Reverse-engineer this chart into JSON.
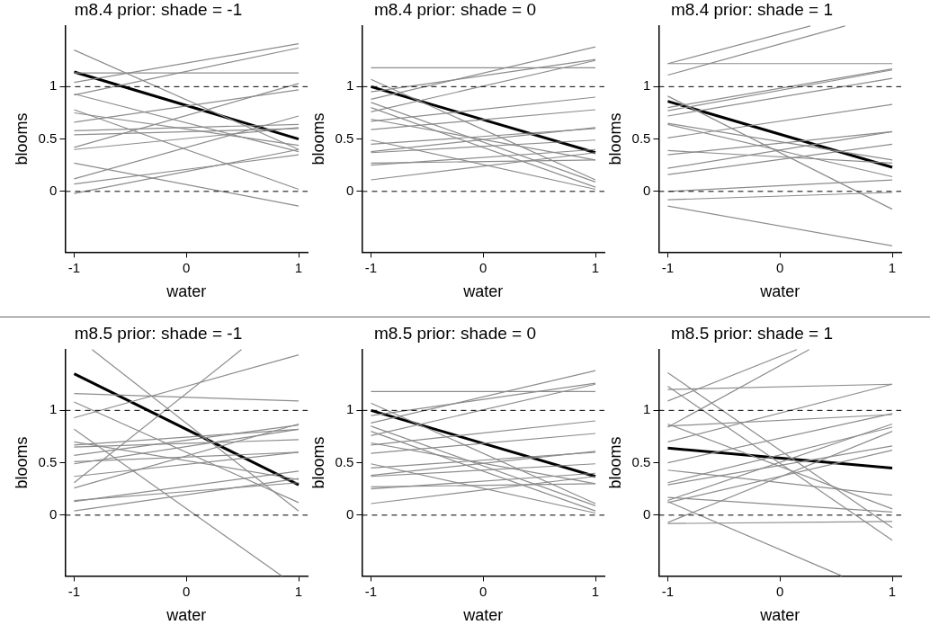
{
  "chart_data": [
    {
      "type": "line",
      "title": "m8.4 prior: shade = -1",
      "xlabel": "water",
      "ylabel": "blooms",
      "xlim": [
        -1.08,
        1.08
      ],
      "xticks": [
        -1,
        0,
        1
      ],
      "ylim": [
        -0.58,
        1.58
      ],
      "yticks": [
        0,
        0.5,
        1
      ],
      "grid": false,
      "marker": "none",
      "line_style": "solid",
      "ref_lines": [
        {
          "axis": "y",
          "value": 0,
          "color": "#000000",
          "line_style": "dashed"
        },
        {
          "axis": "y",
          "value": 1,
          "color": "#000000",
          "line_style": "dashed"
        }
      ],
      "series": [
        {
          "color": "#8c8c8c",
          "x": [
            -1,
            1
          ],
          "values": [
            1.35,
            0.4
          ]
        },
        {
          "color": "#8c8c8c",
          "x": [
            -1,
            1
          ],
          "values": [
            1.04,
            1.41
          ]
        },
        {
          "color": "#8c8c8c",
          "x": [
            -1,
            1
          ],
          "values": [
            0.92,
            1.37
          ]
        },
        {
          "color": "#8c8c8c",
          "x": [
            -1,
            1
          ],
          "values": [
            1.13,
            1.13
          ]
        },
        {
          "color": "#8c8c8c",
          "x": [
            -1,
            1
          ],
          "values": [
            0.93,
            0.38
          ]
        },
        {
          "color": "#8c8c8c",
          "x": [
            -1,
            1
          ],
          "values": [
            0.78,
            0.02
          ]
        },
        {
          "color": "#8c8c8c",
          "x": [
            -1,
            1
          ],
          "values": [
            0.75,
            0.44
          ]
        },
        {
          "color": "#8c8c8c",
          "x": [
            -1,
            1
          ],
          "values": [
            0.66,
            0.97
          ]
        },
        {
          "color": "#8c8c8c",
          "x": [
            -1,
            1
          ],
          "values": [
            0.58,
            0.64
          ]
        },
        {
          "color": "#8c8c8c",
          "x": [
            -1,
            1
          ],
          "values": [
            0.54,
            0.6
          ]
        },
        {
          "color": "#8c8c8c",
          "x": [
            -1,
            1
          ],
          "values": [
            0.42,
            1.03
          ]
        },
        {
          "color": "#8c8c8c",
          "x": [
            -1,
            1
          ],
          "values": [
            0.4,
            0.61
          ]
        },
        {
          "color": "#8c8c8c",
          "x": [
            -1,
            1
          ],
          "values": [
            0.27,
            -0.14
          ]
        },
        {
          "color": "#8c8c8c",
          "x": [
            -1,
            1
          ],
          "values": [
            0.12,
            0.72
          ]
        },
        {
          "color": "#8c8c8c",
          "x": [
            -1,
            1
          ],
          "values": [
            0.07,
            0.35
          ]
        },
        {
          "color": "#8c8c8c",
          "x": [
            -1,
            1
          ],
          "values": [
            -0.02,
            0.4
          ]
        },
        {
          "color": "#000000",
          "x": [
            -1,
            1
          ],
          "values": [
            1.14,
            0.5
          ]
        }
      ]
    },
    {
      "type": "line",
      "title": "m8.4 prior: shade = 0",
      "xlabel": "water",
      "ylabel": "blooms",
      "xlim": [
        -1.08,
        1.08
      ],
      "xticks": [
        -1,
        0,
        1
      ],
      "ylim": [
        -0.58,
        1.58
      ],
      "yticks": [
        0,
        0.5,
        1
      ],
      "grid": false,
      "marker": "none",
      "line_style": "solid",
      "ref_lines": [
        {
          "axis": "y",
          "value": 0,
          "color": "#000000",
          "line_style": "dashed"
        },
        {
          "axis": "y",
          "value": 1,
          "color": "#000000",
          "line_style": "dashed"
        }
      ],
      "series": [
        {
          "color": "#8c8c8c",
          "x": [
            -1,
            1
          ],
          "values": [
            1.18,
            1.18
          ]
        },
        {
          "color": "#8c8c8c",
          "x": [
            -1,
            1
          ],
          "values": [
            1.07,
            0.11
          ]
        },
        {
          "color": "#8c8c8c",
          "x": [
            -1,
            1
          ],
          "values": [
            0.95,
            1.26
          ]
        },
        {
          "color": "#8c8c8c",
          "x": [
            -1,
            1
          ],
          "values": [
            0.88,
            1.38
          ]
        },
        {
          "color": "#8c8c8c",
          "x": [
            -1,
            1
          ],
          "values": [
            0.85,
            0.09
          ]
        },
        {
          "color": "#8c8c8c",
          "x": [
            -1,
            1
          ],
          "values": [
            0.8,
            0.04
          ]
        },
        {
          "color": "#8c8c8c",
          "x": [
            -1,
            1
          ],
          "values": [
            0.76,
            1.25
          ]
        },
        {
          "color": "#8c8c8c",
          "x": [
            -1,
            1
          ],
          "values": [
            0.69,
            0.3
          ]
        },
        {
          "color": "#8c8c8c",
          "x": [
            -1,
            1
          ],
          "values": [
            0.67,
            0.9
          ]
        },
        {
          "color": "#8c8c8c",
          "x": [
            -1,
            1
          ],
          "values": [
            0.59,
            0.78
          ]
        },
        {
          "color": "#8c8c8c",
          "x": [
            -1,
            1
          ],
          "values": [
            0.49,
            0.02
          ]
        },
        {
          "color": "#8c8c8c",
          "x": [
            -1,
            1
          ],
          "values": [
            0.45,
            0.6
          ]
        },
        {
          "color": "#8c8c8c",
          "x": [
            -1,
            1
          ],
          "values": [
            0.38,
            0.61
          ]
        },
        {
          "color": "#8c8c8c",
          "x": [
            -1,
            1
          ],
          "values": [
            0.37,
            0.49
          ]
        },
        {
          "color": "#8c8c8c",
          "x": [
            -1,
            1
          ],
          "values": [
            0.27,
            0.3
          ]
        },
        {
          "color": "#8c8c8c",
          "x": [
            -1,
            1
          ],
          "values": [
            0.25,
            0.4
          ]
        },
        {
          "color": "#8c8c8c",
          "x": [
            -1,
            1
          ],
          "values": [
            0.11,
            0.37
          ]
        },
        {
          "color": "#000000",
          "x": [
            -1,
            1
          ],
          "values": [
            1.0,
            0.37
          ]
        }
      ]
    },
    {
      "type": "line",
      "title": "m8.4 prior: shade = 1",
      "xlabel": "water",
      "ylabel": "blooms",
      "xlim": [
        -1.08,
        1.08
      ],
      "xticks": [
        -1,
        0,
        1
      ],
      "ylim": [
        -0.58,
        1.58
      ],
      "yticks": [
        0,
        0.5,
        1
      ],
      "grid": false,
      "marker": "none",
      "line_style": "solid",
      "ref_lines": [
        {
          "axis": "y",
          "value": 0,
          "color": "#000000",
          "line_style": "dashed"
        },
        {
          "axis": "y",
          "value": 1,
          "color": "#000000",
          "line_style": "dashed"
        }
      ],
      "series": [
        {
          "color": "#8c8c8c",
          "x": [
            -1,
            1
          ],
          "values": [
            1.22,
            1.22
          ]
        },
        {
          "color": "#8c8c8c",
          "x": [
            -1,
            0.27
          ],
          "values": [
            1.22,
            1.58
          ]
        },
        {
          "color": "#8c8c8c",
          "x": [
            -1,
            0.58
          ],
          "values": [
            1.11,
            1.58
          ]
        },
        {
          "color": "#8c8c8c",
          "x": [
            -1,
            1
          ],
          "values": [
            0.91,
            -0.17
          ]
        },
        {
          "color": "#8c8c8c",
          "x": [
            -1,
            1
          ],
          "values": [
            0.8,
            1.17
          ]
        },
        {
          "color": "#8c8c8c",
          "x": [
            -1,
            1
          ],
          "values": [
            0.77,
            1.16
          ]
        },
        {
          "color": "#8c8c8c",
          "x": [
            -1,
            1
          ],
          "values": [
            0.72,
            1.08
          ]
        },
        {
          "color": "#8c8c8c",
          "x": [
            -1,
            1
          ],
          "values": [
            0.65,
            0.3
          ]
        },
        {
          "color": "#8c8c8c",
          "x": [
            -1,
            1
          ],
          "values": [
            0.64,
            0.14
          ]
        },
        {
          "color": "#8c8c8c",
          "x": [
            -1,
            1
          ],
          "values": [
            0.51,
            0.83
          ]
        },
        {
          "color": "#8c8c8c",
          "x": [
            -1,
            1
          ],
          "values": [
            0.39,
            0.27
          ]
        },
        {
          "color": "#8c8c8c",
          "x": [
            -1,
            1
          ],
          "values": [
            0.35,
            0.57
          ]
        },
        {
          "color": "#8c8c8c",
          "x": [
            -1,
            1
          ],
          "values": [
            0.22,
            0.57
          ]
        },
        {
          "color": "#8c8c8c",
          "x": [
            -1,
            1
          ],
          "values": [
            0.16,
            0.45
          ]
        },
        {
          "color": "#8c8c8c",
          "x": [
            -1,
            1
          ],
          "values": [
            0.0,
            0.11
          ]
        },
        {
          "color": "#8c8c8c",
          "x": [
            -1,
            1
          ],
          "values": [
            -0.08,
            -0.01
          ]
        },
        {
          "color": "#8c8c8c",
          "x": [
            -1,
            1
          ],
          "values": [
            -0.14,
            -0.52
          ]
        },
        {
          "color": "#000000",
          "x": [
            -1,
            1
          ],
          "values": [
            0.86,
            0.23
          ]
        }
      ]
    },
    {
      "type": "line",
      "title": "m8.5 prior: shade = -1",
      "xlabel": "water",
      "ylabel": "blooms",
      "xlim": [
        -1.08,
        1.08
      ],
      "xticks": [
        -1,
        0,
        1
      ],
      "ylim": [
        -0.58,
        1.58
      ],
      "yticks": [
        0,
        0.5,
        1
      ],
      "grid": false,
      "marker": "none",
      "line_style": "solid",
      "ref_lines": [
        {
          "axis": "y",
          "value": 0,
          "color": "#000000",
          "line_style": "dashed"
        },
        {
          "axis": "y",
          "value": 1,
          "color": "#000000",
          "line_style": "dashed"
        }
      ],
      "series": [
        {
          "color": "#8c8c8c",
          "x": [
            -0.84,
            1
          ],
          "values": [
            1.58,
            0.04
          ]
        },
        {
          "color": "#8c8c8c",
          "x": [
            -1,
            1
          ],
          "values": [
            1.16,
            1.09
          ]
        },
        {
          "color": "#8c8c8c",
          "x": [
            -1,
            1
          ],
          "values": [
            1.08,
            0.12
          ]
        },
        {
          "color": "#8c8c8c",
          "x": [
            -1,
            1
          ],
          "values": [
            0.93,
            1.53
          ]
        },
        {
          "color": "#8c8c8c",
          "x": [
            -1,
            0.85
          ],
          "values": [
            0.82,
            -0.58
          ]
        },
        {
          "color": "#8c8c8c",
          "x": [
            -1,
            1
          ],
          "values": [
            0.7,
            0.34
          ]
        },
        {
          "color": "#8c8c8c",
          "x": [
            -1,
            1
          ],
          "values": [
            0.67,
            0.82
          ]
        },
        {
          "color": "#8c8c8c",
          "x": [
            -1,
            1
          ],
          "values": [
            0.65,
            0.72
          ]
        },
        {
          "color": "#8c8c8c",
          "x": [
            -1,
            1
          ],
          "values": [
            0.57,
            0.86
          ]
        },
        {
          "color": "#8c8c8c",
          "x": [
            -1,
            1
          ],
          "values": [
            0.51,
            0.6
          ]
        },
        {
          "color": "#8c8c8c",
          "x": [
            -1,
            1
          ],
          "values": [
            0.49,
            0.82
          ]
        },
        {
          "color": "#8c8c8c",
          "x": [
            -1,
            1
          ],
          "values": [
            0.37,
            0.6
          ]
        },
        {
          "color": "#8c8c8c",
          "x": [
            -1,
            0.49
          ],
          "values": [
            0.31,
            1.58
          ]
        },
        {
          "color": "#8c8c8c",
          "x": [
            -1,
            1
          ],
          "values": [
            0.26,
            0.87
          ]
        },
        {
          "color": "#8c8c8c",
          "x": [
            -1,
            1
          ],
          "values": [
            0.14,
            0.31
          ]
        },
        {
          "color": "#8c8c8c",
          "x": [
            -1,
            1
          ],
          "values": [
            0.13,
            0.42
          ]
        },
        {
          "color": "#8c8c8c",
          "x": [
            -1,
            1
          ],
          "values": [
            0.04,
            0.35
          ]
        },
        {
          "color": "#000000",
          "x": [
            -1,
            1
          ],
          "values": [
            1.35,
            0.29
          ]
        }
      ]
    },
    {
      "type": "line",
      "title": "m8.5 prior: shade = 0",
      "xlabel": "water",
      "ylabel": "blooms",
      "xlim": [
        -1.08,
        1.08
      ],
      "xticks": [
        -1,
        0,
        1
      ],
      "ylim": [
        -0.58,
        1.58
      ],
      "yticks": [
        0,
        0.5,
        1
      ],
      "grid": false,
      "marker": "none",
      "line_style": "solid",
      "ref_lines": [
        {
          "axis": "y",
          "value": 0,
          "color": "#000000",
          "line_style": "dashed"
        },
        {
          "axis": "y",
          "value": 1,
          "color": "#000000",
          "line_style": "dashed"
        }
      ],
      "series": [
        {
          "color": "#8c8c8c",
          "x": [
            -1,
            1
          ],
          "values": [
            1.18,
            1.18
          ]
        },
        {
          "color": "#8c8c8c",
          "x": [
            -1,
            1
          ],
          "values": [
            1.07,
            0.11
          ]
        },
        {
          "color": "#8c8c8c",
          "x": [
            -1,
            1
          ],
          "values": [
            0.95,
            1.26
          ]
        },
        {
          "color": "#8c8c8c",
          "x": [
            -1,
            1
          ],
          "values": [
            0.88,
            1.38
          ]
        },
        {
          "color": "#8c8c8c",
          "x": [
            -1,
            1
          ],
          "values": [
            0.85,
            0.09
          ]
        },
        {
          "color": "#8c8c8c",
          "x": [
            -1,
            1
          ],
          "values": [
            0.8,
            0.04
          ]
        },
        {
          "color": "#8c8c8c",
          "x": [
            -1,
            1
          ],
          "values": [
            0.76,
            1.25
          ]
        },
        {
          "color": "#8c8c8c",
          "x": [
            -1,
            1
          ],
          "values": [
            0.69,
            0.3
          ]
        },
        {
          "color": "#8c8c8c",
          "x": [
            -1,
            1
          ],
          "values": [
            0.67,
            0.9
          ]
        },
        {
          "color": "#8c8c8c",
          "x": [
            -1,
            1
          ],
          "values": [
            0.59,
            0.78
          ]
        },
        {
          "color": "#8c8c8c",
          "x": [
            -1,
            1
          ],
          "values": [
            0.49,
            0.02
          ]
        },
        {
          "color": "#8c8c8c",
          "x": [
            -1,
            1
          ],
          "values": [
            0.45,
            0.6
          ]
        },
        {
          "color": "#8c8c8c",
          "x": [
            -1,
            1
          ],
          "values": [
            0.38,
            0.61
          ]
        },
        {
          "color": "#8c8c8c",
          "x": [
            -1,
            1
          ],
          "values": [
            0.37,
            0.49
          ]
        },
        {
          "color": "#8c8c8c",
          "x": [
            -1,
            1
          ],
          "values": [
            0.27,
            0.3
          ]
        },
        {
          "color": "#8c8c8c",
          "x": [
            -1,
            1
          ],
          "values": [
            0.25,
            0.4
          ]
        },
        {
          "color": "#8c8c8c",
          "x": [
            -1,
            1
          ],
          "values": [
            0.11,
            0.37
          ]
        },
        {
          "color": "#000000",
          "x": [
            -1,
            1
          ],
          "values": [
            1.0,
            0.37
          ]
        }
      ]
    },
    {
      "type": "line",
      "title": "m8.5 prior: shade = 1",
      "xlabel": "water",
      "ylabel": "blooms",
      "xlim": [
        -1.08,
        1.08
      ],
      "xticks": [
        -1,
        0,
        1
      ],
      "ylim": [
        -0.58,
        1.58
      ],
      "yticks": [
        0,
        0.5,
        1
      ],
      "grid": false,
      "marker": "none",
      "line_style": "solid",
      "ref_lines": [
        {
          "axis": "y",
          "value": 0,
          "color": "#000000",
          "line_style": "dashed"
        },
        {
          "axis": "y",
          "value": 1,
          "color": "#000000",
          "line_style": "dashed"
        }
      ],
      "series": [
        {
          "color": "#8c8c8c",
          "x": [
            -1,
            1
          ],
          "values": [
            1.36,
            -0.12
          ]
        },
        {
          "color": "#8c8c8c",
          "x": [
            -1,
            1
          ],
          "values": [
            1.23,
            -0.24
          ]
        },
        {
          "color": "#8c8c8c",
          "x": [
            -1,
            1
          ],
          "values": [
            1.2,
            1.25
          ]
        },
        {
          "color": "#8c8c8c",
          "x": [
            -1,
            0.15
          ],
          "values": [
            1.09,
            1.58
          ]
        },
        {
          "color": "#8c8c8c",
          "x": [
            -1,
            0.26
          ],
          "values": [
            0.84,
            1.58
          ]
        },
        {
          "color": "#8c8c8c",
          "x": [
            -1,
            1
          ],
          "values": [
            0.85,
            0.96
          ]
        },
        {
          "color": "#8c8c8c",
          "x": [
            -1,
            1
          ],
          "values": [
            0.87,
            0.06
          ]
        },
        {
          "color": "#8c8c8c",
          "x": [
            -1,
            1
          ],
          "values": [
            0.7,
            1.25
          ]
        },
        {
          "color": "#8c8c8c",
          "x": [
            -1,
            1
          ],
          "values": [
            0.5,
            0.97
          ]
        },
        {
          "color": "#8c8c8c",
          "x": [
            -1,
            1
          ],
          "values": [
            0.43,
            0.19
          ]
        },
        {
          "color": "#8c8c8c",
          "x": [
            -1,
            1
          ],
          "values": [
            0.31,
            0.84
          ]
        },
        {
          "color": "#8c8c8c",
          "x": [
            -1,
            1
          ],
          "values": [
            0.29,
            0.66
          ]
        },
        {
          "color": "#8c8c8c",
          "x": [
            -1,
            1
          ],
          "values": [
            0.14,
            0.87
          ]
        },
        {
          "color": "#8c8c8c",
          "x": [
            -1,
            1
          ],
          "values": [
            0.12,
            0.62
          ]
        },
        {
          "color": "#8c8c8c",
          "x": [
            -1,
            1
          ],
          "values": [
            0.17,
            0.03
          ]
        },
        {
          "color": "#8c8c8c",
          "x": [
            -1,
            1
          ],
          "values": [
            -0.08,
            -0.06
          ]
        },
        {
          "color": "#8c8c8c",
          "x": [
            -1,
            1
          ],
          "values": [
            -0.07,
            0.8
          ]
        },
        {
          "color": "#8c8c8c",
          "x": [
            -1,
            0.55
          ],
          "values": [
            0.13,
            -0.58
          ]
        },
        {
          "color": "#000000",
          "x": [
            -1,
            1
          ],
          "values": [
            0.64,
            0.45
          ]
        }
      ]
    }
  ]
}
